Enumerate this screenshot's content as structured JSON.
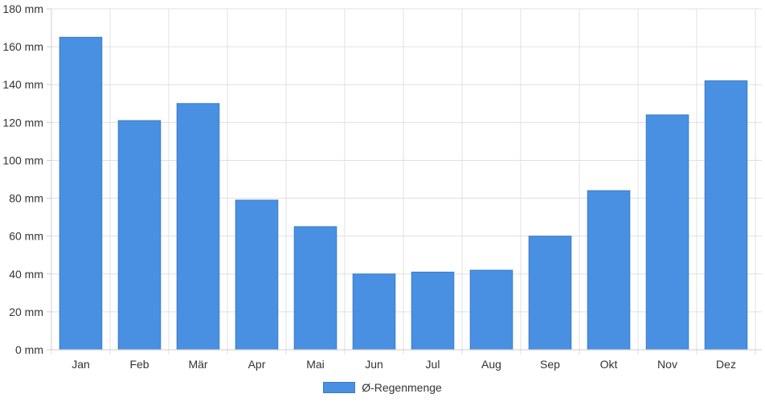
{
  "chart_data": {
    "type": "bar",
    "categories": [
      "Jan",
      "Feb",
      "Mär",
      "Apr",
      "Mai",
      "Jun",
      "Jul",
      "Aug",
      "Sep",
      "Okt",
      "Nov",
      "Dez"
    ],
    "series": [
      {
        "name": "Ø-Regenmenge",
        "values": [
          165,
          121,
          130,
          79,
          65,
          40,
          41,
          42,
          60,
          84,
          124,
          142
        ],
        "color": "#4a90e2"
      }
    ],
    "y_unit_suffix": " mm",
    "ylim": [
      0,
      180
    ],
    "y_ticks": [
      0,
      20,
      40,
      60,
      80,
      100,
      120,
      140,
      160,
      180
    ],
    "grid": true,
    "legend_position": "bottom",
    "colors": {
      "bar": "#4a90e2",
      "bar_border": "#3a7bc8",
      "grid": "#e0e0e0",
      "axis": "#cccccc",
      "text": "#333333"
    }
  }
}
